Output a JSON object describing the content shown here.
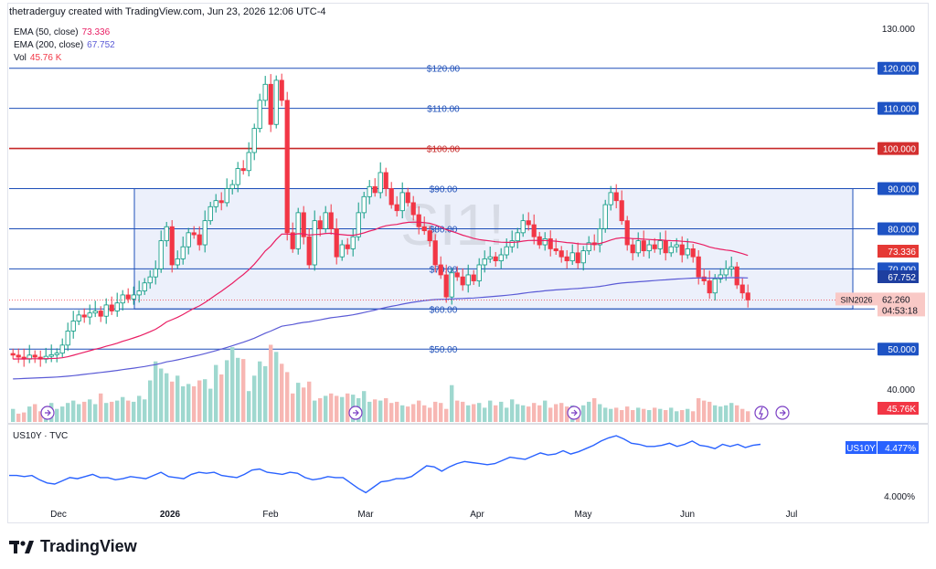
{
  "header": {
    "attribution": "thetraderguy created with TradingView.com, Jun 23, 2026 12:06 UTC-4"
  },
  "indicators": [
    {
      "label": "EMA (50, close)",
      "value": "73.336",
      "color": "#e91e63"
    },
    {
      "label": "EMA (200, close)",
      "value": "67.752",
      "color": "#5b5bd6"
    },
    {
      "label": "Vol",
      "value": "45.76 K",
      "color": "#f23645"
    }
  ],
  "watermark": "SI1!",
  "brand": {
    "name": "TradingView"
  },
  "colors": {
    "up": "#089981",
    "down": "#f23645",
    "hline": "#1e4fb8",
    "red_line": "#c62828",
    "box_fill": "#e6ebfa",
    "ema50": "#e91e63",
    "ema200": "#5b5bd6",
    "yield": "#2962ff"
  },
  "chart_data": [
    {
      "type": "candlestick",
      "symbol": "SIN2026",
      "title": "SI1!",
      "x_labels": [
        "Dec",
        "2026",
        "Feb",
        "Mar",
        "Apr",
        "May",
        "Jun",
        "Jul"
      ],
      "y_ticks": [
        "130.000",
        "120.000",
        "110.000",
        "100.000",
        "90.000",
        "80.000",
        "70.000",
        "60.000",
        "50.000",
        "40.000"
      ],
      "ylim": [
        40,
        130
      ],
      "horizontal_lines": [
        {
          "value": 120,
          "label": "$120.00",
          "axis_label": "120.000",
          "color": "#1e4fb8"
        },
        {
          "value": 110,
          "label": "$110.00",
          "axis_label": "110.000",
          "color": "#1e4fb8"
        },
        {
          "value": 100,
          "label": "$100.00",
          "axis_label": "100.000",
          "color": "#c62828"
        },
        {
          "value": 90,
          "label": "$90.00",
          "axis_label": "90.000",
          "color": "#1e4fb8"
        },
        {
          "value": 80,
          "label": "$80.00",
          "axis_label": "80.000",
          "color": "#1e4fb8"
        },
        {
          "value": 70,
          "label": "$70.00",
          "axis_label": "70.000",
          "color": "#1e4fb8"
        },
        {
          "value": 60,
          "label": "$60.00",
          "axis_label": "60.000",
          "color": "#1e4fb8"
        },
        {
          "value": 50,
          "label": "$50.00",
          "axis_label": "50.000",
          "color": "#1e4fb8"
        }
      ],
      "range_box": {
        "low": 60,
        "high": 90
      },
      "last_price": "62.260",
      "countdown": "04:53:18",
      "ema50_label": "73.336",
      "ema200_label": "67.752",
      "volume_label": "45.76K",
      "closes": [
        48.5,
        48.0,
        47.5,
        48.5,
        48.0,
        47.5,
        48.2,
        48.6,
        49.0,
        51.0,
        54.5,
        57.0,
        58.5,
        58.0,
        59.0,
        59.5,
        58.2,
        61.0,
        59.5,
        61.5,
        63.5,
        62.5,
        63.5,
        64.5,
        66.5,
        68.0,
        70.0,
        77.0,
        80.5,
        71.0,
        72.5,
        75.5,
        79.0,
        78.5,
        76.0,
        82.0,
        85.5,
        87.0,
        86.5,
        90.0,
        91.0,
        95.0,
        94.5,
        99.0,
        105.0,
        112.0,
        116.0,
        106.0,
        117.0,
        112.0,
        79.0,
        75.0,
        84.0,
        78.0,
        71.0,
        82.0,
        80.0,
        84.0,
        80.0,
        73.0,
        76.0,
        75.0,
        78.0,
        84.0,
        88.0,
        90.5,
        89.0,
        94.0,
        90.0,
        86.0,
        84.5,
        89.0,
        86.5,
        83.5,
        80.5,
        79.5,
        77.0,
        71.0,
        68.5,
        63.0,
        69.0,
        68.0,
        66.0,
        68.5,
        67.0,
        71.0,
        72.5,
        73.0,
        72.0,
        73.5,
        75.5,
        77.0,
        79.0,
        82.0,
        81.0,
        78.0,
        76.0,
        77.5,
        75.0,
        74.5,
        73.0,
        72.0,
        74.0,
        71.5,
        74.5,
        76.5,
        76.0,
        80.0,
        86.0,
        89.0,
        87.0,
        82.0,
        76.0,
        74.0,
        77.0,
        74.5,
        76.0,
        75.0,
        77.0,
        74.0,
        75.5,
        76.0,
        73.5,
        75.0,
        73.0,
        68.0,
        67.0,
        64.0,
        67.5,
        68.5,
        70.0,
        70.5,
        66.0,
        64.0,
        62.26
      ],
      "volumes": [
        5.5,
        3.5,
        4.0,
        6.5,
        7.5,
        4.5,
        6.5,
        8.0,
        5.5,
        6.5,
        8.0,
        9.0,
        7.5,
        8.5,
        9.5,
        7.5,
        12.0,
        8.0,
        8.5,
        9.0,
        10.5,
        9.0,
        8.5,
        11.0,
        9.5,
        17.5,
        25.5,
        22.5,
        20.5,
        17.0,
        19.5,
        15.0,
        16.0,
        15.0,
        17.5,
        18.0,
        14.0,
        24.0,
        20.0,
        26.0,
        31.5,
        27.0,
        26.5,
        13.0,
        19.5,
        25.5,
        23.5,
        32.5,
        29.5,
        24.5,
        21.0,
        12.0,
        16.5,
        14.5,
        17.0,
        9.0,
        10.0,
        11.0,
        12.0,
        11.0,
        10.5,
        12.0,
        11.5,
        10.0,
        13.0,
        8.5,
        9.5,
        9.0,
        10.0,
        8.0,
        8.5,
        7.0,
        6.5,
        7.5,
        9.0,
        7.0,
        6.0,
        8.5,
        8.0,
        5.5,
        15.5,
        9.0,
        8.5,
        7.0,
        7.5,
        8.0,
        6.0,
        9.0,
        7.0,
        8.5,
        6.0,
        9.5,
        7.5,
        7.0,
        6.5,
        8.0,
        7.0,
        9.0,
        6.0,
        7.5,
        8.0,
        6.5,
        7.0,
        6.0,
        7.0,
        8.5,
        10.0,
        7.5,
        6.0,
        5.5,
        6.0,
        5.0,
        6.5,
        5.0,
        6.0,
        5.5,
        5.0,
        6.0,
        5.5,
        5.0,
        6.0,
        4.5,
        5.0,
        5.5,
        4.5,
        10.0,
        9.0,
        8.5,
        7.0,
        6.5,
        7.0,
        8.0,
        7.0,
        5.5,
        4.5
      ]
    },
    {
      "type": "line",
      "title": "US10Y · TVC",
      "series_label": "US10Y",
      "last_value": "4.477%",
      "y_ticks": [
        "4.000%"
      ],
      "ylim": [
        3.94,
        4.62
      ],
      "values": [
        4.19,
        4.19,
        4.18,
        4.19,
        4.15,
        4.12,
        4.11,
        4.14,
        4.17,
        4.16,
        4.18,
        4.2,
        4.17,
        4.17,
        4.15,
        4.16,
        4.18,
        4.17,
        4.16,
        4.19,
        4.22,
        4.18,
        4.17,
        4.16,
        4.2,
        4.22,
        4.21,
        4.22,
        4.19,
        4.18,
        4.17,
        4.2,
        4.24,
        4.25,
        4.22,
        4.21,
        4.2,
        4.22,
        4.21,
        4.17,
        4.15,
        4.16,
        4.18,
        4.17,
        4.17,
        4.12,
        4.07,
        4.03,
        4.08,
        4.13,
        4.14,
        4.16,
        4.16,
        4.18,
        4.23,
        4.28,
        4.27,
        4.23,
        4.27,
        4.3,
        4.32,
        4.31,
        4.3,
        4.29,
        4.3,
        4.33,
        4.36,
        4.35,
        4.34,
        4.37,
        4.4,
        4.38,
        4.39,
        4.42,
        4.39,
        4.41,
        4.44,
        4.47,
        4.51,
        4.54,
        4.56,
        4.53,
        4.49,
        4.48,
        4.46,
        4.46,
        4.47,
        4.49,
        4.46,
        4.48,
        4.51,
        4.47,
        4.46,
        4.44,
        4.48,
        4.46,
        4.48,
        4.45,
        4.47,
        4.48
      ]
    }
  ]
}
